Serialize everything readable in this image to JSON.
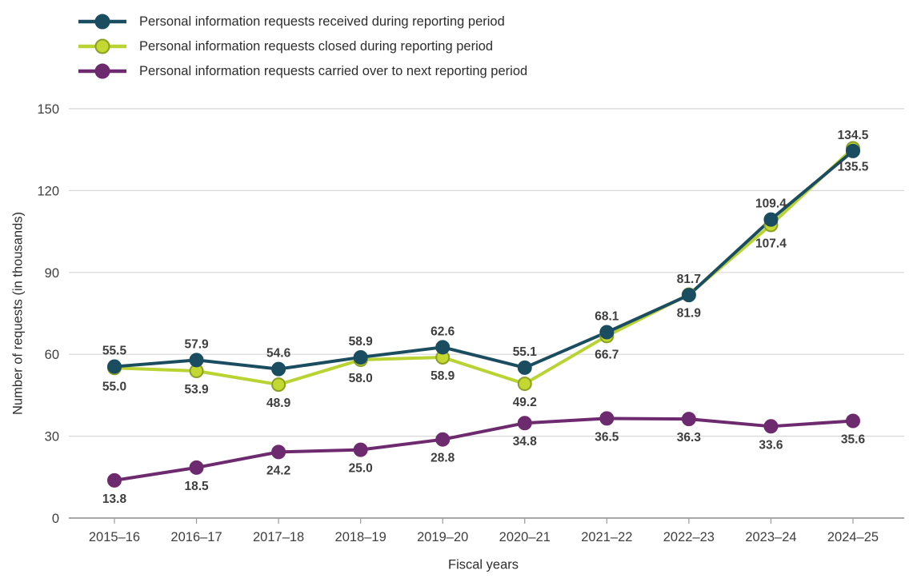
{
  "chart_data": {
    "type": "line",
    "title": "",
    "xlabel": "Fiscal years",
    "ylabel": "Number of requests (in thousands)",
    "ylim": [
      0,
      150
    ],
    "yticks": [
      0,
      30,
      60,
      90,
      120,
      150
    ],
    "grid": true,
    "legend_position": "top-left",
    "categories": [
      "2015–16",
      "2016–17",
      "2017–18",
      "2018–19",
      "2019–20",
      "2020–21",
      "2021–22",
      "2022–23",
      "2023–24",
      "2024–25"
    ],
    "series": [
      {
        "id": "received",
        "name": "Personal information requests received during reporting period",
        "color": "#1b4d61",
        "marker_fill": "#1b4d61",
        "marker_stroke": "#1b4d61",
        "label_position": "above",
        "values": [
          55.5,
          57.9,
          54.6,
          58.9,
          62.6,
          55.1,
          68.1,
          81.7,
          109.4,
          134.5
        ]
      },
      {
        "id": "closed",
        "name": "Personal information requests closed during reporting period",
        "color": "#b9d432",
        "marker_fill": "#c3d932",
        "marker_stroke": "#8ba024",
        "label_position": "below",
        "values": [
          55.0,
          53.9,
          48.9,
          58.0,
          58.9,
          49.2,
          66.7,
          81.9,
          107.4,
          135.5
        ]
      },
      {
        "id": "carried",
        "name": "Personal information requests carried over to next reporting period",
        "color": "#6e2a6e",
        "marker_fill": "#6e2a6e",
        "marker_stroke": "#6e2a6e",
        "label_position": "below",
        "values": [
          13.8,
          18.5,
          24.2,
          25.0,
          28.8,
          34.8,
          36.5,
          36.3,
          33.6,
          35.6
        ]
      }
    ]
  }
}
